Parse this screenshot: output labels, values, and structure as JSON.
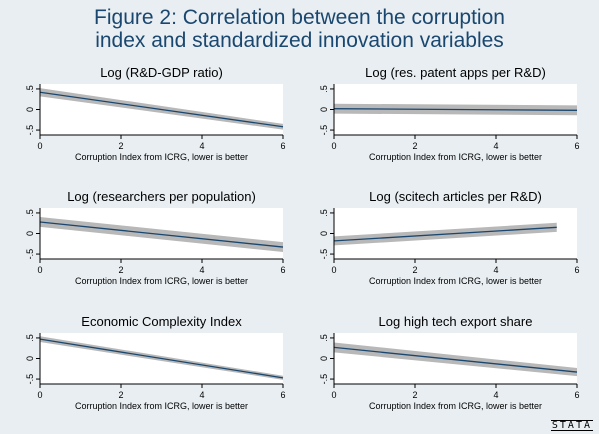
{
  "figure_title_line1": "Figure 2: Correlation between the corruption",
  "figure_title_line2": "index and standardized innovation variables",
  "brand": "STATA",
  "colors": {
    "background": "#e8eef2",
    "plot_area": "#ffffff",
    "title": "#1a476f",
    "fit_line": "#1a476f",
    "confidence_band": "#b8b8b8"
  },
  "chart_data": [
    {
      "type": "line",
      "title": "Log (R&D-GDP ratio)",
      "xlabel": "Corruption Index from ICRG, lower is better",
      "ylabel": "",
      "xlim": [
        0,
        6
      ],
      "ylim": [
        -0.62,
        0.62
      ],
      "xticks": [
        "0",
        "2",
        "4",
        "6"
      ],
      "yticks": [
        "-.5",
        "0",
        ".5"
      ],
      "grid": false,
      "series": [
        {
          "x": [
            0,
            6
          ],
          "y": [
            0.42,
            -0.42
          ],
          "ci_width": [
            0.1,
            0.07
          ]
        }
      ]
    },
    {
      "type": "line",
      "title": "Log (res. patent apps per R&D)",
      "xlabel": "Corruption Index from ICRG, lower is better",
      "ylabel": "",
      "xlim": [
        0,
        6
      ],
      "ylim": [
        -0.62,
        0.62
      ],
      "xticks": [
        "0",
        "2",
        "4",
        "6"
      ],
      "yticks": [
        "-.5",
        "0",
        ".5"
      ],
      "grid": false,
      "series": [
        {
          "x": [
            0,
            6
          ],
          "y": [
            0.02,
            -0.02
          ],
          "ci_width": [
            0.12,
            0.12
          ]
        }
      ]
    },
    {
      "type": "line",
      "title": "Log (researchers per population)",
      "xlabel": "Corruption Index from ICRG, lower is better",
      "ylabel": "",
      "xlim": [
        0,
        6
      ],
      "ylim": [
        -0.62,
        0.62
      ],
      "xticks": [
        "0",
        "2",
        "4",
        "6"
      ],
      "yticks": [
        "-.5",
        "0",
        ".5"
      ],
      "grid": false,
      "series": [
        {
          "x": [
            0,
            6
          ],
          "y": [
            0.28,
            -0.33
          ],
          "ci_width": [
            0.12,
            0.12
          ]
        }
      ]
    },
    {
      "type": "line",
      "title": "Log (scitech articles per R&D)",
      "xlabel": "Corruption Index from ICRG, lower is better",
      "ylabel": "",
      "xlim": [
        0,
        6
      ],
      "ylim": [
        -0.62,
        0.62
      ],
      "xticks": [
        "0",
        "2",
        "4",
        "6"
      ],
      "yticks": [
        "-.5",
        "0",
        ".5"
      ],
      "grid": false,
      "series": [
        {
          "x": [
            0,
            5.5
          ],
          "y": [
            -0.18,
            0.15
          ],
          "ci_width": [
            0.11,
            0.11
          ]
        }
      ]
    },
    {
      "type": "line",
      "title": "Economic Complexity Index",
      "xlabel": "Corruption Index from ICRG, lower is better",
      "ylabel": "",
      "xlim": [
        0,
        6
      ],
      "ylim": [
        -0.62,
        0.62
      ],
      "xticks": [
        "0",
        "2",
        "4",
        "6"
      ],
      "yticks": [
        "-.5",
        "0",
        ".5"
      ],
      "grid": false,
      "series": [
        {
          "x": [
            0,
            6
          ],
          "y": [
            0.47,
            -0.47
          ],
          "ci_width": [
            0.07,
            0.05
          ]
        }
      ]
    },
    {
      "type": "line",
      "title": "Log high tech export share",
      "xlabel": "Corruption Index from ICRG, lower is better",
      "ylabel": "",
      "xlim": [
        0,
        6
      ],
      "ylim": [
        -0.62,
        0.62
      ],
      "xticks": [
        "0",
        "2",
        "4",
        "6"
      ],
      "yticks": [
        "-.5",
        "0",
        ".5"
      ],
      "grid": false,
      "series": [
        {
          "x": [
            0,
            6
          ],
          "y": [
            0.27,
            -0.33
          ],
          "ci_width": [
            0.12,
            0.1
          ]
        }
      ]
    }
  ]
}
